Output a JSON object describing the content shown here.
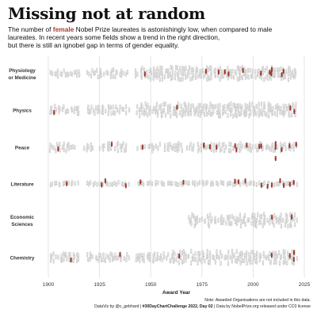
{
  "header": {
    "title": "Missing not at random",
    "subtitle_pre": "The number of ",
    "subtitle_highlight": "female",
    "subtitle_post": " Nobel Prize laureates is astonishingly low, when compared to male",
    "subtitle_line2": "laureates. In recent years some fields show a trend in the right direction,",
    "subtitle_line3": "but there is still an ignobel gap in terms of gender equality."
  },
  "footer": {
    "note": "Note: Awarded Organisations are not included in this data.",
    "credit_a": "DataViz by @c_gebhard | ",
    "credit_b": "#30DayChartChallenge 2022, Day 02",
    "credit_c": " | Data by NobelPrize.org released under CC0 license"
  },
  "colors": {
    "female": "#b03a2e",
    "male": "#c8c8c8",
    "grid": "#dedede"
  },
  "chart_data": {
    "type": "scatter",
    "xlabel": "Award Year",
    "xlim": [
      1900,
      2025
    ],
    "xticks": [
      1900,
      1925,
      1950,
      1975,
      2000,
      2025
    ],
    "categories": [
      "Physiology or Medicine",
      "Physics",
      "Peace",
      "Literature",
      "Economic Sciences",
      "Chemistry"
    ],
    "category_lines": [
      [
        "Physiology",
        "or Medicine"
      ],
      [
        "Physics"
      ],
      [
        "Peace"
      ],
      [
        "Literature"
      ],
      [
        "Economic",
        "Sciences"
      ],
      [
        "Chemistry"
      ]
    ],
    "series": [
      {
        "name": "female",
        "category": "Physiology or Medicine",
        "x": [
          1947,
          1977,
          1983,
          1986,
          1988,
          1995,
          2004,
          2008,
          2009,
          2009,
          2014,
          2015
        ]
      },
      {
        "name": "female",
        "category": "Physics",
        "x": [
          1903,
          1963,
          2018,
          2020
        ]
      },
      {
        "name": "female",
        "category": "Peace",
        "x": [
          1905,
          1931,
          1946,
          1976,
          1976,
          1979,
          1982,
          1991,
          1992,
          1997,
          2003,
          2004,
          2011,
          2011,
          2011,
          2014,
          2018,
          2021
        ]
      },
      {
        "name": "female",
        "category": "Literature",
        "x": [
          1909,
          1926,
          1928,
          1938,
          1945,
          1966,
          1991,
          1993,
          1996,
          2004,
          2007,
          2009,
          2013,
          2015,
          2018,
          2020
        ]
      },
      {
        "name": "female",
        "category": "Economic Sciences",
        "x": [
          2009,
          2019
        ]
      },
      {
        "name": "female",
        "category": "Chemistry",
        "x": [
          1911,
          1935,
          1964,
          2009,
          2018,
          2020,
          2020
        ]
      },
      {
        "name": "male",
        "category": "all",
        "x": []
      }
    ]
  }
}
